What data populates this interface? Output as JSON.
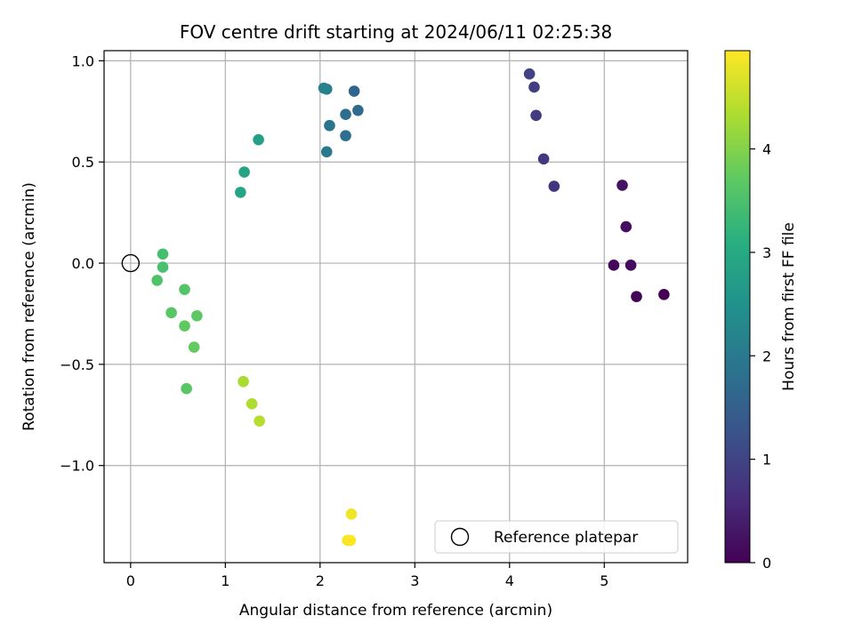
{
  "chart_data": {
    "type": "scatter",
    "title": "FOV centre drift starting at 2024/06/11 02:25:38",
    "xlabel": "Angular distance from reference (arcmin)",
    "ylabel": "Rotation from reference (arcmin)",
    "xlim": [
      -0.28,
      5.88
    ],
    "ylim": [
      -1.48,
      1.05
    ],
    "xticks": [
      0,
      1,
      2,
      3,
      4,
      5
    ],
    "yticks": [
      -1.0,
      -0.5,
      0.0,
      0.5,
      1.0
    ],
    "xtick_labels": [
      "0",
      "1",
      "2",
      "3",
      "4",
      "5"
    ],
    "ytick_labels": [
      "−1.0",
      "−0.5",
      "0.0",
      "0.5",
      "1.0"
    ],
    "grid": true,
    "colormap": "viridis",
    "colorbar": {
      "label": "Hours from first FF file",
      "min": 0,
      "max": 4.95,
      "ticks": [
        0,
        1,
        2,
        3,
        4
      ],
      "tick_labels": [
        "0",
        "1",
        "2",
        "3",
        "4"
      ]
    },
    "legend": {
      "placement": "lower right",
      "label": "Reference platepar"
    },
    "reference_point": {
      "x": 0,
      "y": 0
    },
    "points": [
      {
        "x": 5.63,
        "y": -0.155,
        "hours": 0.0
      },
      {
        "x": 5.34,
        "y": -0.165,
        "hours": 0.05
      },
      {
        "x": 5.1,
        "y": -0.01,
        "hours": 0.1
      },
      {
        "x": 5.28,
        "y": -0.01,
        "hours": 0.15
      },
      {
        "x": 5.23,
        "y": 0.18,
        "hours": 0.2
      },
      {
        "x": 5.19,
        "y": 0.385,
        "hours": 0.25
      },
      {
        "x": 4.47,
        "y": 0.38,
        "hours": 0.75
      },
      {
        "x": 4.36,
        "y": 0.515,
        "hours": 0.8
      },
      {
        "x": 4.28,
        "y": 0.73,
        "hours": 0.85
      },
      {
        "x": 4.26,
        "y": 0.87,
        "hours": 0.9
      },
      {
        "x": 4.21,
        "y": 0.935,
        "hours": 0.95
      },
      {
        "x": 2.36,
        "y": 0.85,
        "hours": 1.6
      },
      {
        "x": 2.4,
        "y": 0.755,
        "hours": 1.7
      },
      {
        "x": 2.27,
        "y": 0.735,
        "hours": 1.75
      },
      {
        "x": 2.27,
        "y": 0.63,
        "hours": 1.8
      },
      {
        "x": 2.1,
        "y": 0.68,
        "hours": 1.9
      },
      {
        "x": 2.07,
        "y": 0.55,
        "hours": 2.0
      },
      {
        "x": 2.07,
        "y": 0.86,
        "hours": 2.1
      },
      {
        "x": 2.04,
        "y": 0.865,
        "hours": 2.2
      },
      {
        "x": 1.35,
        "y": 0.61,
        "hours": 2.8
      },
      {
        "x": 1.2,
        "y": 0.45,
        "hours": 2.85
      },
      {
        "x": 1.16,
        "y": 0.35,
        "hours": 2.9
      },
      {
        "x": 0.34,
        "y": 0.045,
        "hours": 3.45
      },
      {
        "x": 0.34,
        "y": -0.02,
        "hours": 3.5
      },
      {
        "x": 0.28,
        "y": -0.085,
        "hours": 3.55
      },
      {
        "x": 0.57,
        "y": -0.13,
        "hours": 3.6
      },
      {
        "x": 0.43,
        "y": -0.245,
        "hours": 3.65
      },
      {
        "x": 0.7,
        "y": -0.26,
        "hours": 3.7
      },
      {
        "x": 0.57,
        "y": -0.31,
        "hours": 3.72
      },
      {
        "x": 0.67,
        "y": -0.415,
        "hours": 3.75
      },
      {
        "x": 0.59,
        "y": -0.62,
        "hours": 3.65
      },
      {
        "x": 1.19,
        "y": -0.585,
        "hours": 4.3
      },
      {
        "x": 1.28,
        "y": -0.695,
        "hours": 4.35
      },
      {
        "x": 1.36,
        "y": -0.78,
        "hours": 4.4
      },
      {
        "x": 2.33,
        "y": -1.24,
        "hours": 4.85
      },
      {
        "x": 2.29,
        "y": -1.37,
        "hours": 4.9
      },
      {
        "x": 2.32,
        "y": -1.37,
        "hours": 4.95
      }
    ]
  }
}
